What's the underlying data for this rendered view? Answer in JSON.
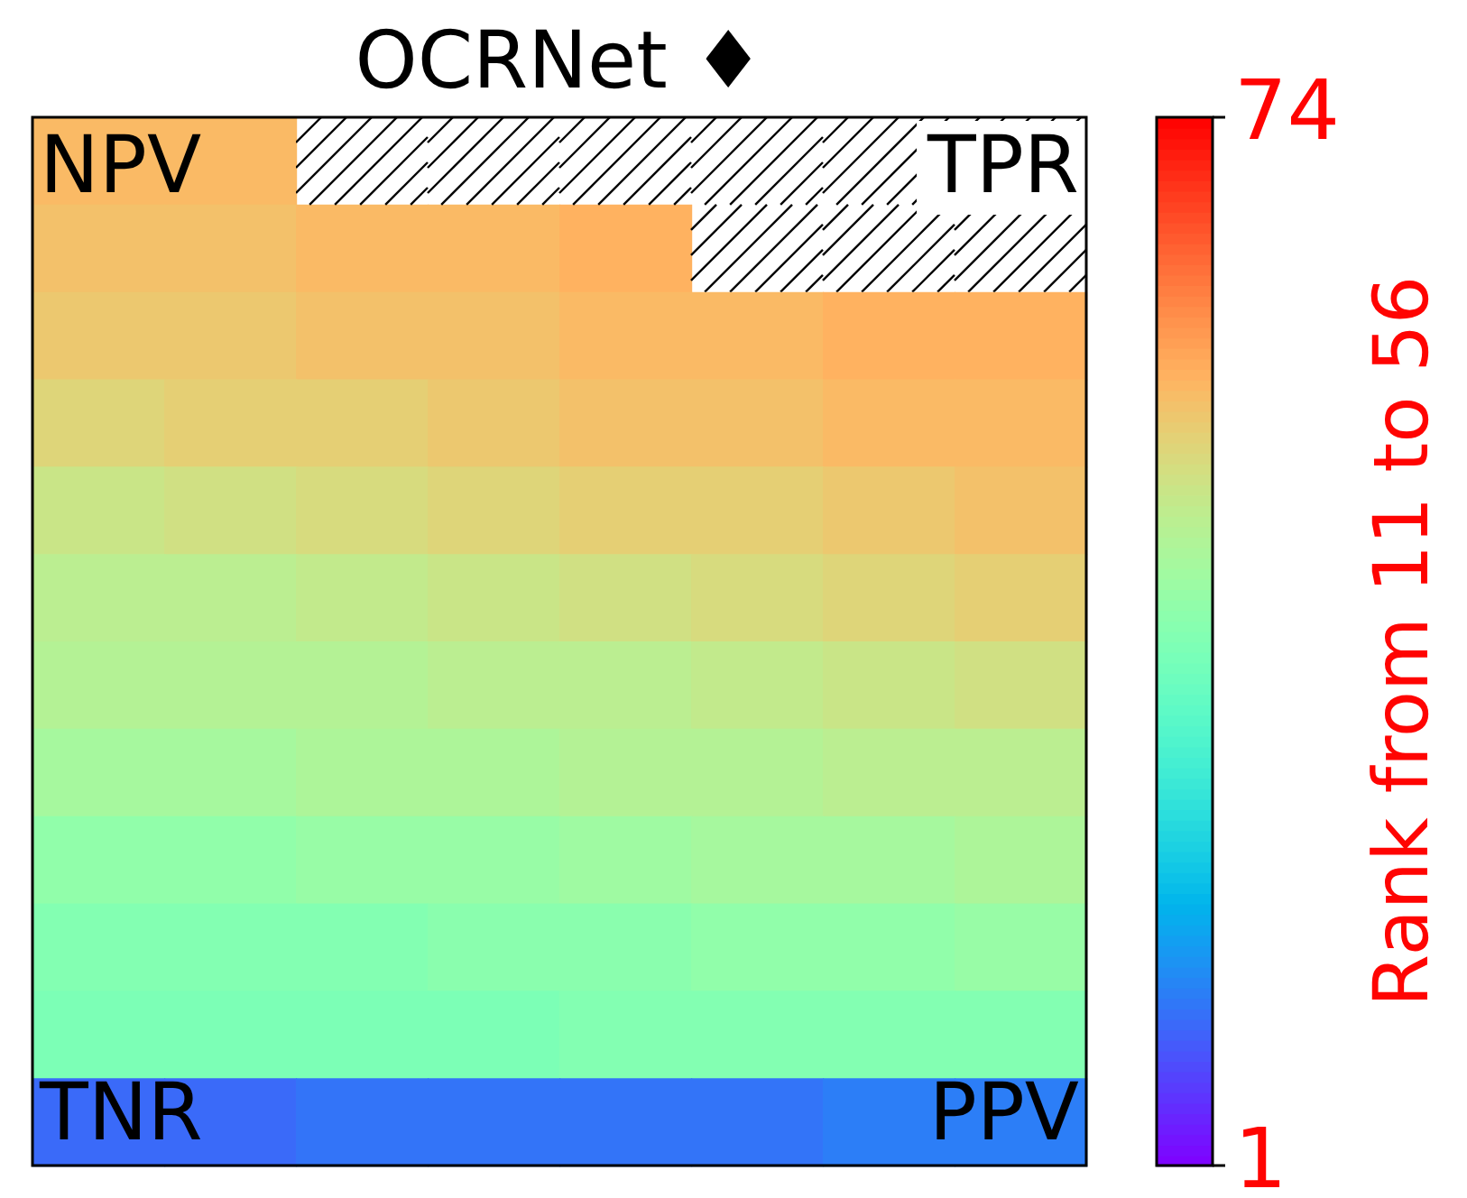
{
  "chart_data": {
    "type": "heatmap",
    "title": "OCRNet ♦",
    "clabel": "Rank from 11 to 56",
    "categories": [
      null,
      null,
      null,
      null,
      null,
      null,
      null,
      null
    ],
    "y_categories": [
      null,
      null,
      null,
      null,
      null,
      null,
      null,
      null,
      null,
      null,
      null,
      null
    ],
    "cells": [
      [
        55,
        55,
        null,
        null,
        null,
        null,
        null,
        null
      ],
      [
        54,
        54,
        55,
        55,
        56,
        null,
        null,
        null
      ],
      [
        53,
        53,
        54,
        54,
        55,
        55,
        56,
        56
      ],
      [
        51,
        52,
        52,
        53,
        54,
        54,
        55,
        55
      ],
      [
        48,
        49,
        50,
        51,
        52,
        52,
        53,
        54
      ],
      [
        46,
        46,
        47,
        48,
        49,
        50,
        51,
        52
      ],
      [
        45,
        45,
        45,
        46,
        46,
        47,
        48,
        49
      ],
      [
        43,
        43,
        44,
        44,
        45,
        45,
        46,
        46
      ],
      [
        40,
        40,
        41,
        41,
        42,
        43,
        43,
        44
      ],
      [
        38,
        38,
        38,
        39,
        39,
        40,
        40,
        41
      ],
      [
        37,
        37,
        37,
        37,
        38,
        38,
        38,
        38
      ],
      [
        11,
        11,
        12,
        12,
        12,
        12,
        13,
        13
      ]
    ],
    "clim": [
      1,
      74
    ],
    "cticks": [
      1,
      74
    ],
    "annotations": [
      "NPV",
      "TPR",
      "TNR",
      "PPV"
    ]
  }
}
